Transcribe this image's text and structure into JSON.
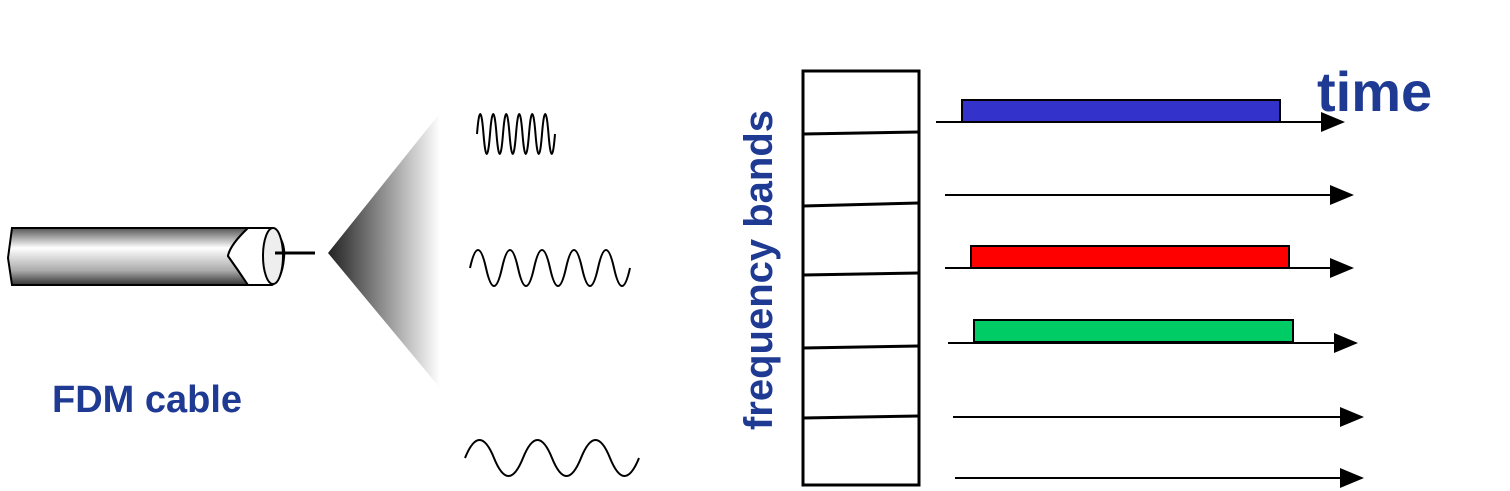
{
  "cable": {
    "label": "FDM cable"
  },
  "bands": {
    "axis_label": "frequency bands"
  },
  "time": {
    "label": "time"
  }
}
